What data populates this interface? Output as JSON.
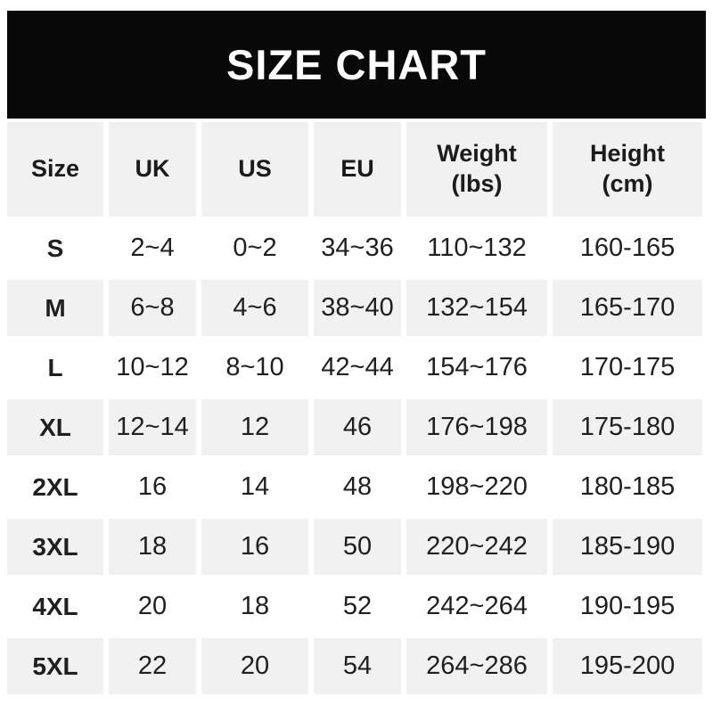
{
  "banner": {
    "title": "SIZE CHART",
    "bg_color": "#080808",
    "text_color": "#ffffff"
  },
  "table": {
    "headers": [
      "Size",
      "UK",
      "US",
      "EU",
      "Weight\n(lbs)",
      "Height\n(cm)"
    ],
    "rows": [
      [
        "S",
        "2~4",
        "0~2",
        "34~36",
        "110~132",
        "160-165"
      ],
      [
        "M",
        "6~8",
        "4~6",
        "38~40",
        "132~154",
        "165-170"
      ],
      [
        "L",
        "10~12",
        "8~10",
        "42~44",
        "154~176",
        "170-175"
      ],
      [
        "XL",
        "12~14",
        "12",
        "46",
        "176~198",
        "175-180"
      ],
      [
        "2XL",
        "16",
        "14",
        "48",
        "198~220",
        "180-185"
      ],
      [
        "3XL",
        "18",
        "16",
        "50",
        "220~242",
        "185-190"
      ],
      [
        "4XL",
        "20",
        "18",
        "52",
        "242~264",
        "190-195"
      ],
      [
        "5XL",
        "22",
        "20",
        "54",
        "264~286",
        "195-200"
      ]
    ],
    "stripe_color": "#f1f1f1",
    "text_color": "#1f1f1f"
  },
  "chart_data": {
    "type": "table",
    "title": "SIZE CHART",
    "columns": [
      "Size",
      "UK",
      "US",
      "EU",
      "Weight (lbs)",
      "Height (cm)"
    ],
    "rows": [
      [
        "S",
        "2~4",
        "0~2",
        "34~36",
        "110~132",
        "160-165"
      ],
      [
        "M",
        "6~8",
        "4~6",
        "38~40",
        "132~154",
        "165-170"
      ],
      [
        "L",
        "10~12",
        "8~10",
        "42~44",
        "154~176",
        "170-175"
      ],
      [
        "XL",
        "12~14",
        "12",
        "46",
        "176~198",
        "175-180"
      ],
      [
        "2XL",
        "16",
        "14",
        "48",
        "198~220",
        "180-185"
      ],
      [
        "3XL",
        "18",
        "16",
        "50",
        "220~242",
        "185-190"
      ],
      [
        "4XL",
        "20",
        "18",
        "52",
        "242~264",
        "190-195"
      ],
      [
        "5XL",
        "22",
        "20",
        "54",
        "264~286",
        "195-200"
      ]
    ],
    "layout": {
      "header_background": "#f1f1f1",
      "row_striping": "alternating white/gray starting white after header",
      "banner_background": "#080808"
    }
  }
}
